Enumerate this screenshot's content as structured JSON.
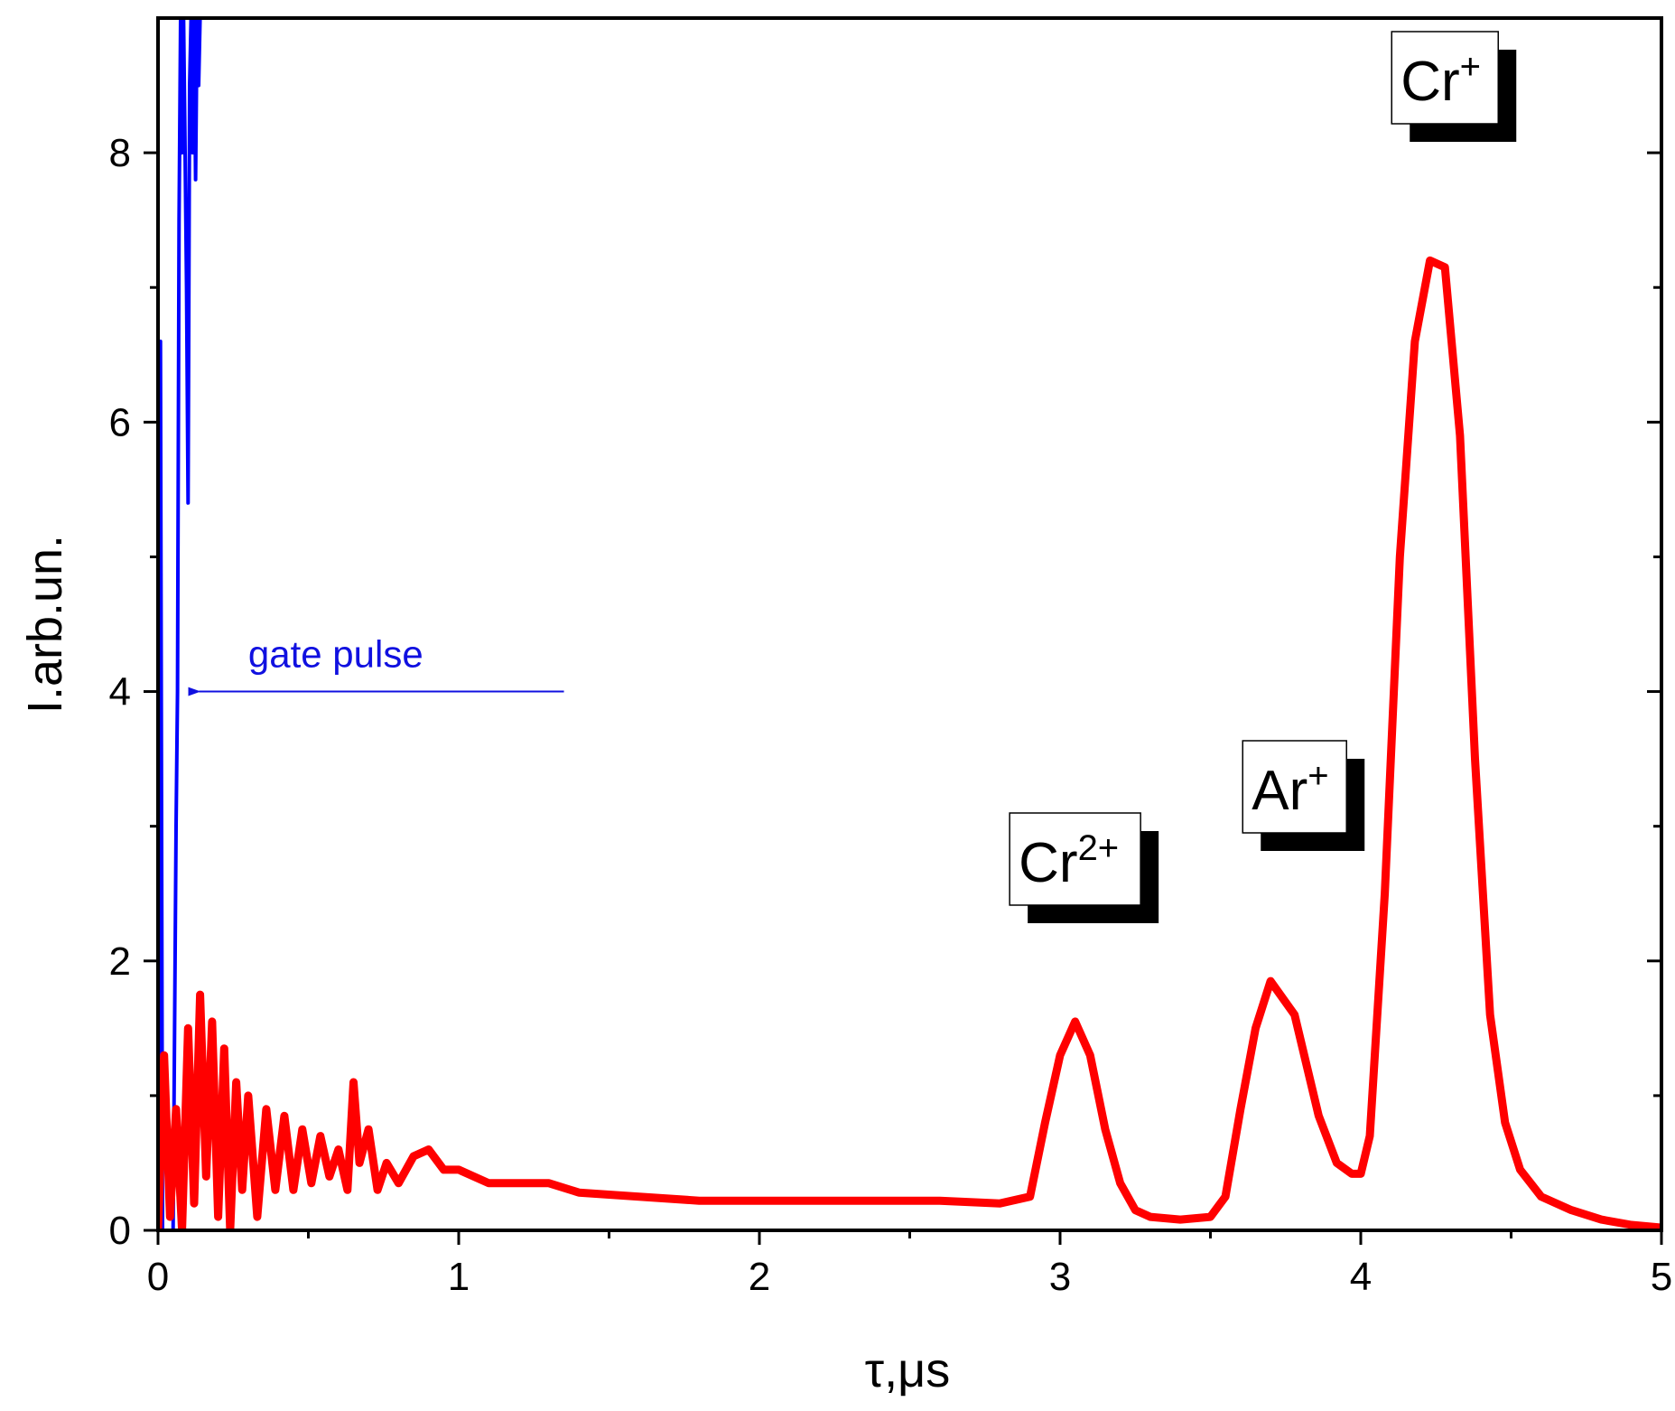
{
  "chart_data": {
    "type": "line",
    "title": "",
    "xlabel": "τ,μs",
    "ylabel": "I.arb.un.",
    "xlim": [
      0,
      5
    ],
    "ylim": [
      0,
      9
    ],
    "x_ticks": [
      "0",
      "1",
      "2",
      "3",
      "4",
      "5"
    ],
    "y_ticks": [
      "0",
      "2",
      "4",
      "6",
      "8"
    ],
    "grid": false,
    "colors": {
      "ion_signal": "#ff0000",
      "gate_pulse": "#0000ff",
      "annotation": "#1010e0"
    },
    "series": [
      {
        "color": "#0000ff",
        "x": [
          0.0,
          0.008,
          0.015,
          0.02,
          0.025,
          0.03,
          0.04,
          0.05,
          0.06,
          0.065,
          0.07,
          0.075,
          0.08,
          0.085,
          0.09,
          0.095,
          0.1,
          0.105,
          0.11,
          0.115,
          0.12,
          0.125,
          0.13,
          0.135,
          0.14
        ],
        "y": [
          0.0,
          6.6,
          0.0,
          0.0,
          0.0,
          0.0,
          0.0,
          0.0,
          3.0,
          4.0,
          7.5,
          9.0,
          8.0,
          9.0,
          8.0,
          7.0,
          5.4,
          8.5,
          9.0,
          8.0,
          9.0,
          7.8,
          9.0,
          8.5,
          9.0
        ]
      },
      {
        "color": "#ff0000",
        "x": [
          0.0,
          0.02,
          0.04,
          0.06,
          0.08,
          0.1,
          0.12,
          0.14,
          0.16,
          0.18,
          0.2,
          0.22,
          0.24,
          0.26,
          0.28,
          0.3,
          0.33,
          0.36,
          0.39,
          0.42,
          0.45,
          0.48,
          0.51,
          0.54,
          0.57,
          0.6,
          0.63,
          0.65,
          0.67,
          0.7,
          0.73,
          0.76,
          0.8,
          0.85,
          0.9,
          0.95,
          1.0,
          1.1,
          1.2,
          1.3,
          1.4,
          1.6,
          1.8,
          2.0,
          2.3,
          2.6,
          2.8,
          2.9,
          2.95,
          3.0,
          3.05,
          3.1,
          3.15,
          3.2,
          3.25,
          3.3,
          3.4,
          3.5,
          3.55,
          3.6,
          3.65,
          3.7,
          3.78,
          3.86,
          3.92,
          3.97,
          4.0,
          4.03,
          4.08,
          4.13,
          4.18,
          4.23,
          4.28,
          4.33,
          4.38,
          4.43,
          4.48,
          4.53,
          4.6,
          4.7,
          4.8,
          4.9,
          5.0
        ],
        "y": [
          0.0,
          1.3,
          0.1,
          0.9,
          0.0,
          1.5,
          0.2,
          1.75,
          0.4,
          1.55,
          0.1,
          1.35,
          0.0,
          1.1,
          0.3,
          1.0,
          0.1,
          0.9,
          0.3,
          0.85,
          0.3,
          0.75,
          0.35,
          0.7,
          0.4,
          0.6,
          0.3,
          1.1,
          0.5,
          0.75,
          0.3,
          0.5,
          0.35,
          0.55,
          0.6,
          0.45,
          0.45,
          0.35,
          0.35,
          0.35,
          0.28,
          0.25,
          0.22,
          0.22,
          0.22,
          0.22,
          0.2,
          0.25,
          0.8,
          1.3,
          1.55,
          1.3,
          0.75,
          0.35,
          0.15,
          0.1,
          0.08,
          0.1,
          0.25,
          0.9,
          1.5,
          1.85,
          1.6,
          0.85,
          0.5,
          0.42,
          0.42,
          0.7,
          2.5,
          5.0,
          6.6,
          7.2,
          7.15,
          5.9,
          3.5,
          1.6,
          0.8,
          0.45,
          0.25,
          0.15,
          0.08,
          0.04,
          0.02
        ]
      }
    ],
    "peak_labels": [
      {
        "base": "Cr",
        "sup": "2+",
        "x": 3.05
      },
      {
        "base": "Ar",
        "sup": "+",
        "x": 3.78
      },
      {
        "base": "Cr",
        "sup": "+",
        "x": 4.28
      }
    ],
    "annotation": {
      "text": "gate pulse",
      "arrow_from": [
        1.35,
        4.0
      ],
      "arrow_to": [
        0.1,
        4.0
      ]
    }
  }
}
